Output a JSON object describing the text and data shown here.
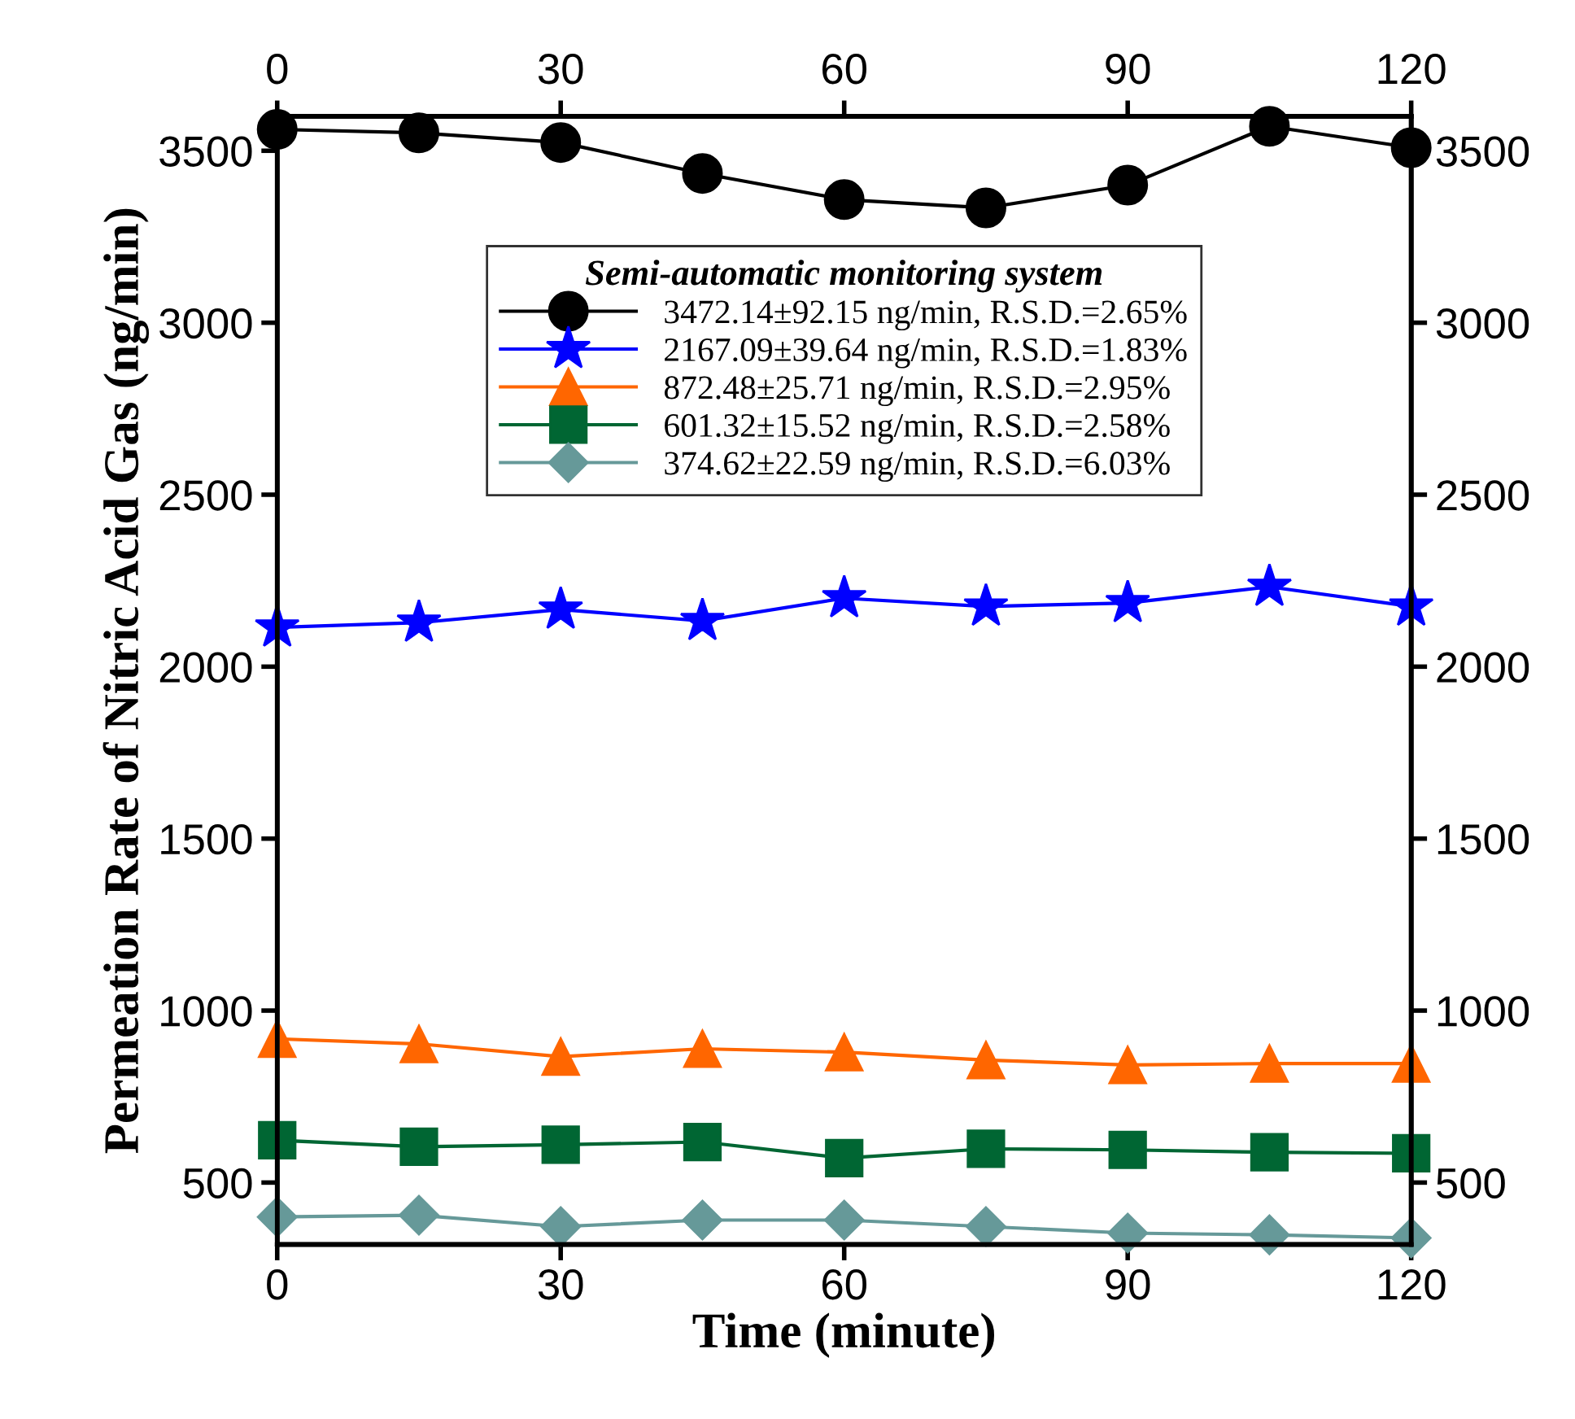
{
  "chart_data": {
    "type": "line",
    "xlabel": "Time (minute)",
    "ylabel": "Permeation Rate of Nitric Acid Gas (ng/min)",
    "legend_title": "Semi-automatic monitoring system",
    "legend": "top",
    "grid": false,
    "x": [
      0,
      15,
      30,
      45,
      60,
      75,
      90,
      105,
      120
    ],
    "xlim": [
      0,
      120
    ],
    "xticks": [
      0,
      30,
      60,
      90,
      120
    ],
    "x2lim": [
      0,
      120
    ],
    "x2ticks": [
      0,
      30,
      60,
      90,
      120
    ],
    "ylim": [
      320,
      3600
    ],
    "yticks": [
      500,
      1000,
      1500,
      2000,
      2500,
      3000,
      3500
    ],
    "y2lim": [
      320,
      3600
    ],
    "y2ticks": [
      500,
      1000,
      1500,
      2000,
      2500,
      3000,
      3500
    ],
    "series": [
      {
        "name": "3472.14±92.15 ng/min, R.S.D.=2.65%",
        "color": "#000000",
        "marker": "circle",
        "values": [
          3562,
          3552,
          3524,
          3434,
          3358,
          3334,
          3400,
          3571,
          3509
        ]
      },
      {
        "name": "2167.09±39.64 ng/min, R.S.D.=1.83%",
        "color": "#0000ff",
        "marker": "star",
        "values": [
          2114,
          2128,
          2166,
          2133,
          2199,
          2175,
          2185,
          2232,
          2175
        ]
      },
      {
        "name": "872.48±25.71 ng/min, R.S.D.=2.95%",
        "color": "#ff6600",
        "marker": "triangle",
        "values": [
          918,
          903,
          866,
          889,
          879,
          856,
          842,
          846,
          846
        ]
      },
      {
        "name": "601.32±15.52 ng/min, R.S.D.=2.58%",
        "color": "#006633",
        "marker": "square",
        "values": [
          623,
          604,
          610,
          618,
          571,
          598,
          595,
          588,
          585
        ]
      },
      {
        "name": "374.62±22.59 ng/min, R.S.D.=6.03%",
        "color": "#669999",
        "marker": "diamond",
        "values": [
          400,
          405,
          372,
          391,
          391,
          372,
          353,
          348,
          339
        ]
      }
    ]
  }
}
